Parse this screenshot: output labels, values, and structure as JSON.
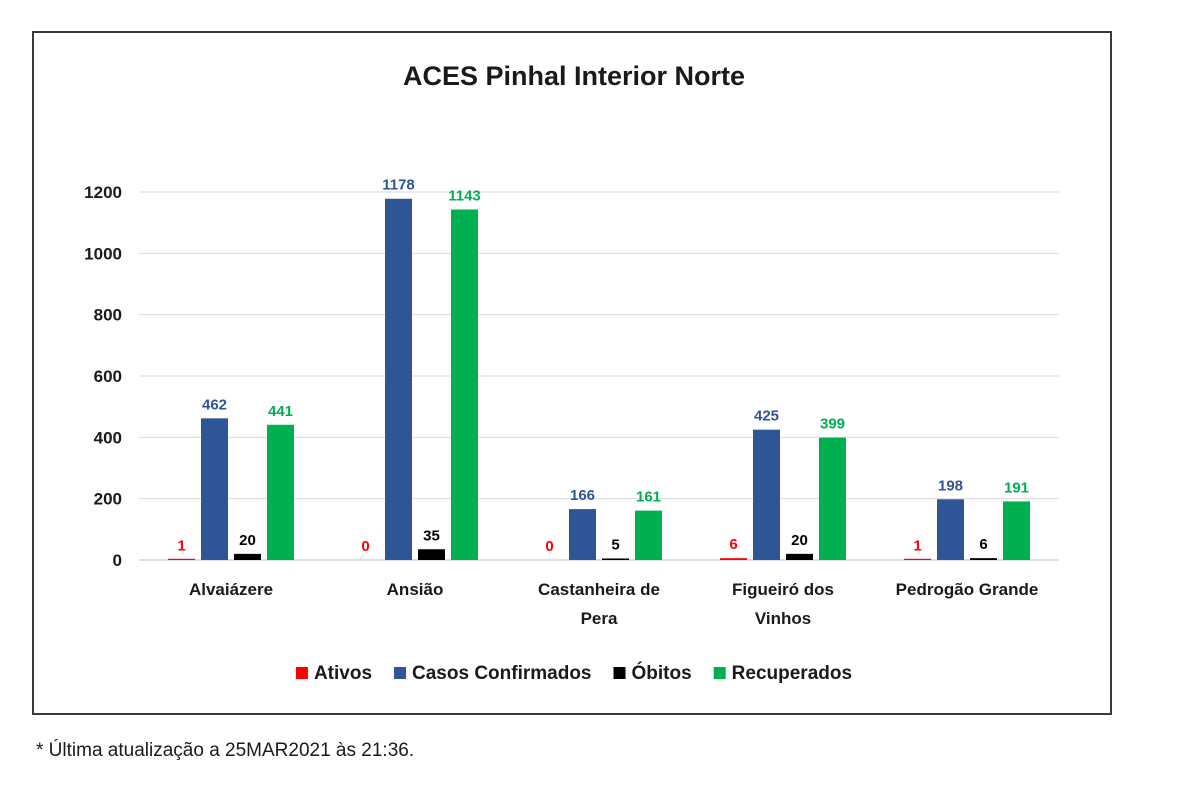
{
  "chart_data": {
    "type": "bar",
    "title": "ACES Pinhal Interior Norte",
    "categories": [
      [
        "Alvaiázere"
      ],
      [
        "Ansião"
      ],
      [
        "Castanheira de",
        "Pera"
      ],
      [
        "Figueiró dos",
        "Vinhos"
      ],
      [
        "Pedrogão Grande"
      ]
    ],
    "series": [
      {
        "name": "Ativos",
        "color": "#ff0000",
        "values": [
          1,
          0,
          0,
          6,
          1
        ]
      },
      {
        "name": "Casos Confirmados",
        "color": "#2f5597",
        "values": [
          462,
          1178,
          166,
          425,
          198
        ]
      },
      {
        "name": "Óbitos",
        "color": "#000000",
        "values": [
          20,
          35,
          5,
          20,
          6
        ]
      },
      {
        "name": "Recuperados",
        "color": "#00b050",
        "values": [
          441,
          1143,
          161,
          399,
          191
        ]
      }
    ],
    "ylim": [
      0,
      1200
    ],
    "yticks": [
      0,
      200,
      400,
      600,
      800,
      1000,
      1200
    ],
    "grid": true,
    "legend_position": "bottom",
    "xlabel": "",
    "ylabel": ""
  },
  "footnote": "* Última atualização a 25MAR2021 às 21:36."
}
